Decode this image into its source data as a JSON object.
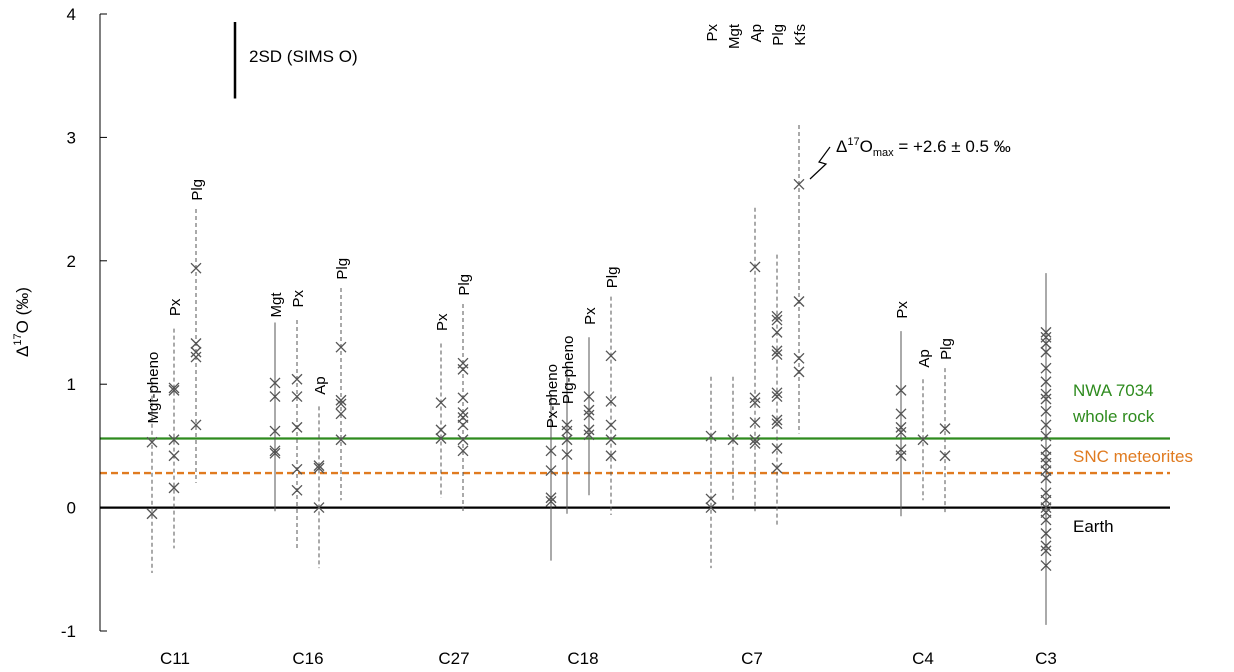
{
  "chart_data": {
    "type": "scatter",
    "ylabel_base": "Δ",
    "ylabel_sup": "17",
    "ylabel_rest": "O (‰)",
    "ylim": [
      -1,
      4
    ],
    "yticks": [
      -1,
      0,
      1,
      2,
      3,
      4
    ],
    "ytick_labels": [
      "-1",
      "0",
      "1",
      "2",
      "3",
      "4"
    ],
    "grid": false,
    "scale_bar_label": "2SD (SIMS O)",
    "scale_bar_value": 0.62,
    "annotation": {
      "prefix": "Δ",
      "sup": "17",
      "base": "O",
      "sub": "max",
      "value": " = +2.6 ± 0.5 ‰"
    },
    "reference_lines": [
      {
        "name": "NWA 7034 whole rock",
        "label_lines": [
          "NWA 7034",
          "whole rock"
        ],
        "value": 0.56,
        "color": "#2e8b1e",
        "style": "solid"
      },
      {
        "name": "SNC meteorites",
        "label_lines": [
          "SNC meteorites"
        ],
        "value": 0.28,
        "color": "#e07b20",
        "style": "dashed"
      },
      {
        "name": "Earth",
        "label_lines": [
          "Earth"
        ],
        "value": 0.0,
        "color": "#000000",
        "style": "solid"
      }
    ],
    "groups": [
      {
        "name": "C11",
        "columns": [
          {
            "mineral": "Mgt-pheno",
            "dashed": true,
            "range": [
              -0.53,
              1.02
            ],
            "values": [
              0.53,
              -0.05
            ]
          },
          {
            "mineral": "Px",
            "dashed": true,
            "range": [
              -0.33,
              1.45
            ],
            "values": [
              0.97,
              0.95,
              0.55,
              0.42,
              0.16
            ]
          },
          {
            "mineral": "Plg",
            "dashed": true,
            "range": [
              0.2,
              2.42
            ],
            "values": [
              1.94,
              1.33,
              1.26,
              1.22,
              0.67
            ]
          }
        ]
      },
      {
        "name": "C16",
        "columns": [
          {
            "mineral": "Mgt",
            "dashed": false,
            "range": [
              -0.03,
              1.5
            ],
            "values": [
              1.01,
              0.9,
              0.62,
              0.46,
              0.44
            ]
          },
          {
            "mineral": "Px",
            "dashed": true,
            "range": [
              -0.34,
              1.52
            ],
            "values": [
              1.04,
              0.9,
              0.65,
              0.31,
              0.14
            ]
          },
          {
            "mineral": "Ap",
            "dashed": true,
            "range": [
              -0.49,
              0.82
            ],
            "values": [
              0.34,
              0.32,
              0.0
            ]
          },
          {
            "mineral": "Plg",
            "dashed": true,
            "range": [
              0.06,
              1.78
            ],
            "values": [
              1.3,
              0.87,
              0.84,
              0.76,
              0.55
            ]
          }
        ]
      },
      {
        "name": "C27",
        "columns": [
          {
            "mineral": "Px",
            "dashed": true,
            "range": [
              0.08,
              1.33
            ],
            "values": [
              0.85,
              0.63,
              0.56
            ]
          },
          {
            "mineral": "Plg",
            "dashed": true,
            "range": [
              -0.03,
              1.65
            ],
            "values": [
              1.17,
              1.12,
              0.89,
              0.77,
              0.73,
              0.67,
              0.55,
              0.46
            ]
          }
        ]
      },
      {
        "name": "C18",
        "columns": [
          {
            "mineral": "Px-pheno",
            "dashed": false,
            "range": [
              -0.43,
              0.92
            ],
            "values": [
              0.46,
              0.3,
              0.08,
              0.05
            ]
          },
          {
            "mineral": "Plg-pheno",
            "dashed": false,
            "range": [
              -0.05,
              1.15
            ],
            "values": [
              0.67,
              0.62,
              0.55,
              0.43
            ]
          },
          {
            "mineral": "Px",
            "dashed": false,
            "range": [
              0.1,
              1.38
            ],
            "values": [
              0.9,
              0.79,
              0.75,
              0.63,
              0.59
            ]
          },
          {
            "mineral": "Plg",
            "dashed": true,
            "range": [
              -0.06,
              1.71
            ],
            "values": [
              1.23,
              0.86,
              0.67,
              0.55,
              0.42
            ]
          }
        ]
      },
      {
        "name": "C7",
        "columns": [
          {
            "mineral": "Px",
            "dashed": true,
            "range": [
              -0.49,
              1.06
            ],
            "values": [
              0.58,
              0.07,
              0.0
            ]
          },
          {
            "mineral": "Mgt",
            "dashed": true,
            "range": [
              0.06,
              1.06
            ],
            "values": [
              0.55
            ]
          },
          {
            "mineral": "Ap",
            "dashed": true,
            "range": [
              -0.03,
              2.43
            ],
            "values": [
              1.95,
              0.89,
              0.85,
              0.69,
              0.55,
              0.52
            ]
          },
          {
            "mineral": "Plg",
            "dashed": true,
            "range": [
              -0.14,
              2.05
            ],
            "values": [
              1.55,
              1.52,
              1.42,
              1.27,
              1.24,
              0.93,
              0.9,
              0.71,
              0.68,
              0.48,
              0.32
            ]
          },
          {
            "mineral": "Kfs",
            "dashed": true,
            "range": [
              0.6,
              3.1
            ],
            "values": [
              2.62,
              1.67,
              1.21,
              1.1
            ]
          }
        ]
      },
      {
        "name": "C4",
        "columns": [
          {
            "mineral": "Px",
            "dashed": false,
            "range": [
              -0.07,
              1.43
            ],
            "values": [
              0.95,
              0.76,
              0.65,
              0.61,
              0.47,
              0.42
            ]
          },
          {
            "mineral": "Ap",
            "dashed": true,
            "range": [
              0.06,
              1.04
            ],
            "values": [
              0.55
            ]
          },
          {
            "mineral": "Plg",
            "dashed": true,
            "range": [
              -0.05,
              1.13
            ],
            "values": [
              0.64,
              0.42
            ]
          }
        ]
      },
      {
        "name": "C3",
        "columns": [
          {
            "mineral": "",
            "dashed": false,
            "range": [
              -0.95,
              1.9
            ],
            "values": [
              1.42,
              1.38,
              1.33,
              1.26,
              1.13,
              1.02,
              0.92,
              0.88,
              0.78,
              0.67,
              0.58,
              0.47,
              0.41,
              0.36,
              0.3,
              0.24,
              0.12,
              0.06,
              0.0,
              -0.04,
              -0.1,
              -0.21,
              -0.31,
              -0.35,
              -0.47
            ]
          }
        ]
      }
    ]
  }
}
